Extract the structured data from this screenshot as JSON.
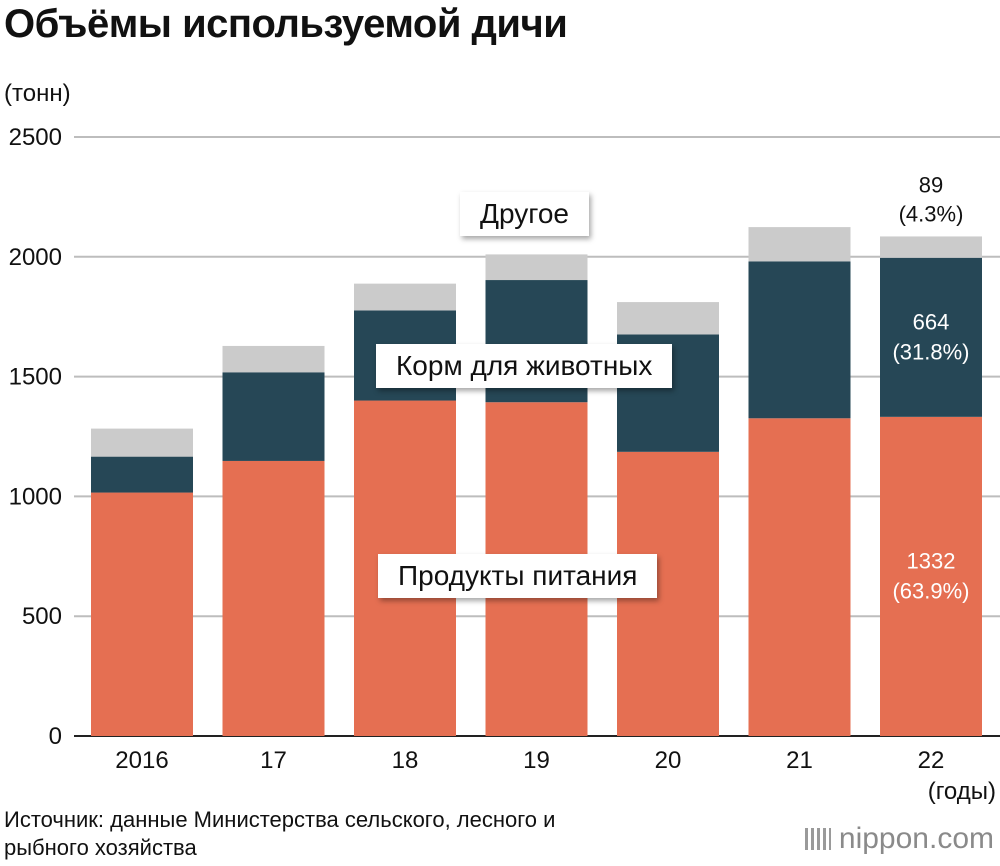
{
  "title": "Объёмы используемой дичи",
  "unit_label": "(тонн)",
  "x_unit_label": "(годы)",
  "source": "Источник: данные Министерства сельского, лесного и рыбного хозяйства",
  "brand": {
    "name": "nippon",
    "suffix": ".com"
  },
  "colors": {
    "food": "#e56f52",
    "feed": "#264756",
    "other": "#cbcbcb"
  },
  "chart_data": {
    "type": "bar",
    "stacked": true,
    "categories": [
      "2016",
      "17",
      "18",
      "19",
      "20",
      "21",
      "22"
    ],
    "series": [
      {
        "name": "Продукты питания",
        "values": [
          1016,
          1148,
          1400,
          1393,
          1186,
          1326,
          1332
        ]
      },
      {
        "name": "Корм для животных",
        "values": [
          150,
          370,
          376,
          510,
          490,
          655,
          664
        ]
      },
      {
        "name": "Другое",
        "values": [
          117,
          110,
          112,
          107,
          135,
          143,
          89
        ]
      }
    ],
    "ylim": [
      0,
      2500
    ],
    "yticks": [
      0,
      500,
      1000,
      1500,
      2000,
      2500
    ],
    "grid": true,
    "annotations": {
      "food_value": "1332",
      "food_pct": "(63.9%)",
      "feed_value": "664",
      "feed_pct": "(31.8%)",
      "other_value": "89",
      "other_pct": "(4.3%)"
    }
  }
}
